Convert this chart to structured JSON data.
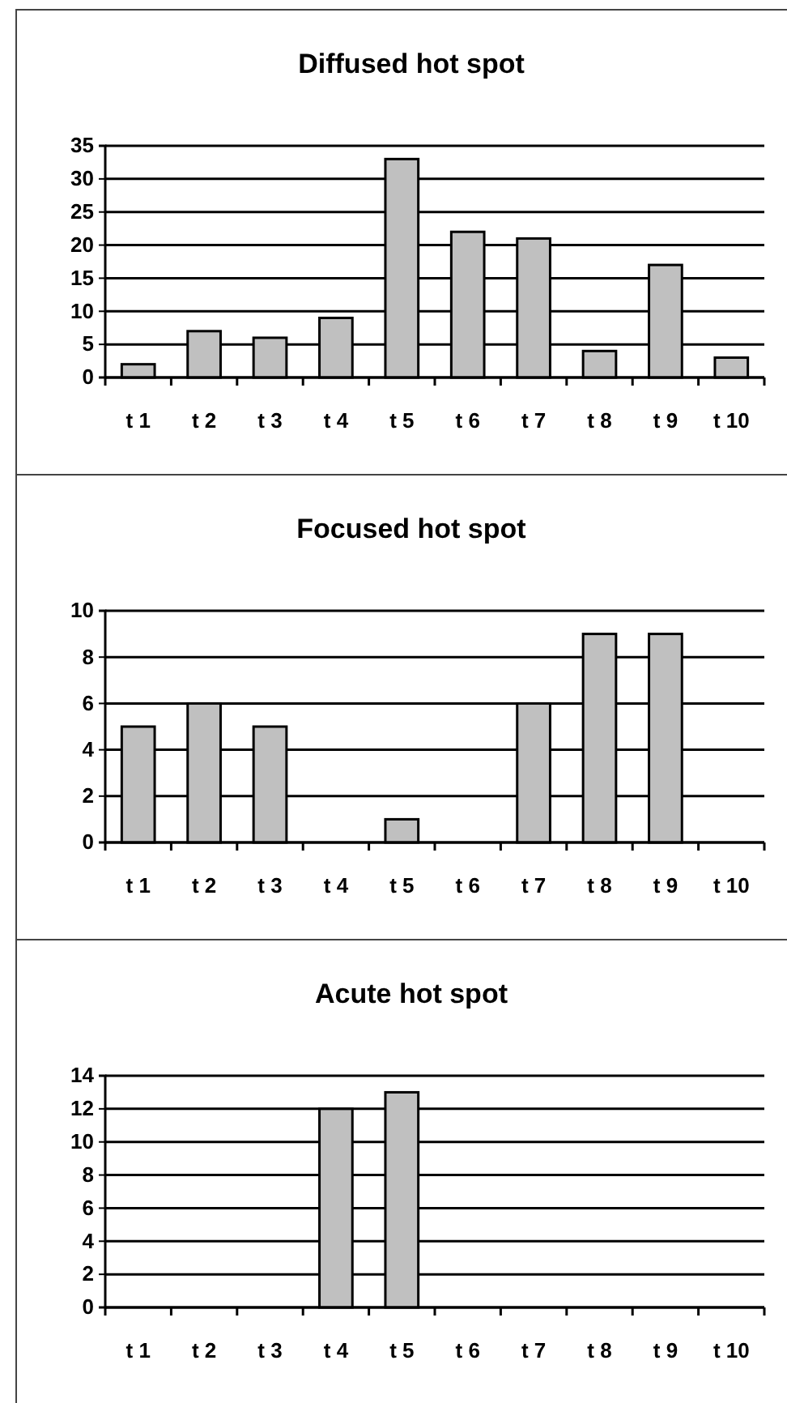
{
  "chart_data": [
    {
      "type": "bar",
      "title": "Diffused hot spot",
      "categories": [
        "t 1",
        "t 2",
        "t 3",
        "t 4",
        "t 5",
        "t 6",
        "t 7",
        "t 8",
        "t 9",
        "t 10"
      ],
      "values": [
        2,
        7,
        6,
        9,
        33,
        22,
        21,
        4,
        17,
        3
      ],
      "color": "#c0c0c0",
      "ylim": [
        0,
        35
      ],
      "yticks": [
        0,
        5,
        10,
        15,
        20,
        25,
        30,
        35
      ],
      "grid": "y"
    },
    {
      "type": "bar",
      "title": "Focused hot spot",
      "categories": [
        "t 1",
        "t 2",
        "t 3",
        "t 4",
        "t 5",
        "t 6",
        "t 7",
        "t 8",
        "t 9",
        "t 10"
      ],
      "values": [
        5,
        6,
        5,
        0,
        1,
        0,
        6,
        9,
        9,
        0
      ],
      "color": "#c0c0c0",
      "ylim": [
        0,
        10
      ],
      "yticks": [
        0,
        2,
        4,
        6,
        8,
        10
      ],
      "grid": "y"
    },
    {
      "type": "bar",
      "title": "Acute hot spot",
      "categories": [
        "t 1",
        "t 2",
        "t 3",
        "t 4",
        "t 5",
        "t 6",
        "t 7",
        "t 8",
        "t 9",
        "t 10"
      ],
      "values": [
        0,
        0,
        0,
        12,
        13,
        0,
        0,
        0,
        0,
        0
      ],
      "color": "#c0c0c0",
      "ylim": [
        0,
        14
      ],
      "yticks": [
        0,
        2,
        4,
        6,
        8,
        10,
        12,
        14
      ],
      "grid": "y"
    }
  ]
}
